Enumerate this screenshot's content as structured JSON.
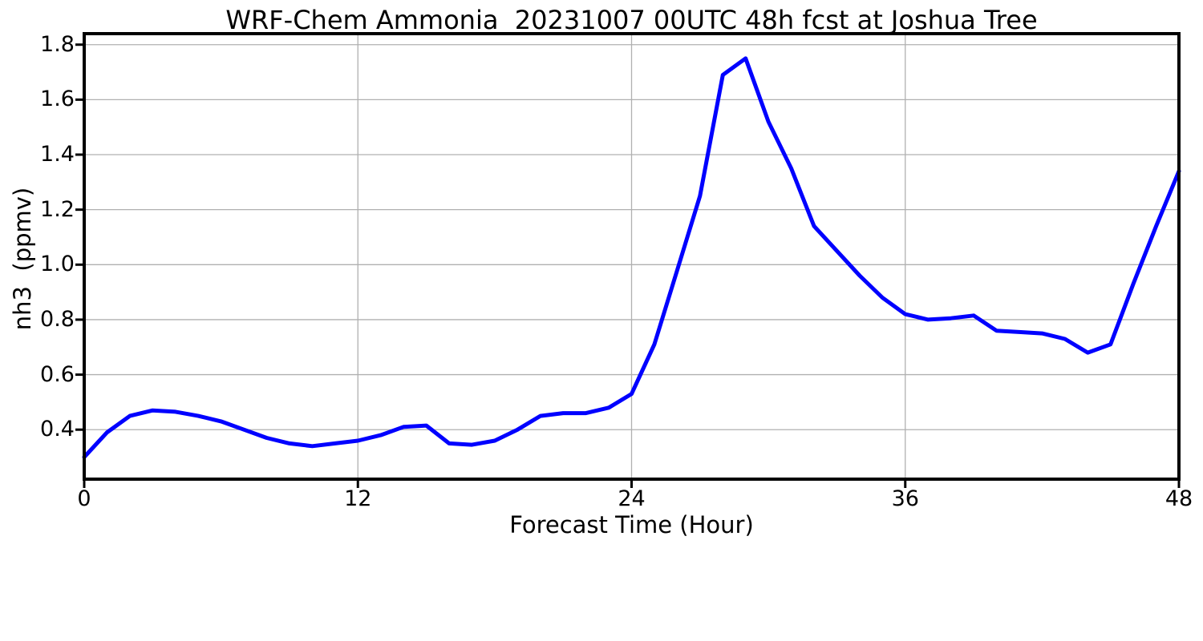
{
  "chart_data": {
    "type": "line",
    "title": "WRF-Chem Ammonia  20231007 00UTC 48h fcst at Joshua Tree",
    "xlabel": "Forecast Time (Hour)",
    "ylabel": "nh3  (ppmv)",
    "series_name": "nh3",
    "x": [
      0,
      1,
      2,
      3,
      4,
      5,
      6,
      7,
      8,
      9,
      10,
      11,
      12,
      13,
      14,
      15,
      16,
      17,
      18,
      19,
      20,
      21,
      22,
      23,
      24,
      25,
      26,
      27,
      28,
      29,
      30,
      31,
      32,
      33,
      34,
      35,
      36,
      37,
      38,
      39,
      40,
      41,
      42,
      43,
      44,
      45,
      46,
      47,
      48
    ],
    "values": [
      0.3,
      0.39,
      0.45,
      0.47,
      0.465,
      0.45,
      0.43,
      0.4,
      0.37,
      0.35,
      0.34,
      0.35,
      0.36,
      0.38,
      0.41,
      0.415,
      0.35,
      0.345,
      0.36,
      0.4,
      0.45,
      0.46,
      0.46,
      0.48,
      0.53,
      0.71,
      0.98,
      1.25,
      1.69,
      1.75,
      1.52,
      1.35,
      1.14,
      1.05,
      0.96,
      0.88,
      0.82,
      0.8,
      0.805,
      0.815,
      0.76,
      0.755,
      0.75,
      0.73,
      0.68,
      0.71,
      0.93,
      1.14,
      1.34
    ],
    "xlim": [
      0,
      48
    ],
    "ylim": [
      0.22,
      1.84
    ],
    "xticks": [
      0,
      12,
      24,
      36,
      48
    ],
    "xtick_labels": [
      "0",
      "12",
      "24",
      "36",
      "48"
    ],
    "yticks": [
      0.4,
      0.6,
      0.8,
      1.0,
      1.2,
      1.4,
      1.6,
      1.8
    ],
    "ytick_labels": [
      "0.4",
      "0.6",
      "0.8",
      "1.0",
      "1.2",
      "1.4",
      "1.6",
      "1.8"
    ],
    "grid": true,
    "legend": "none",
    "line_color": "#0000ff",
    "grid_color": "#b0b0b0",
    "axis_color": "#000000",
    "background_color": "#ffffff"
  }
}
